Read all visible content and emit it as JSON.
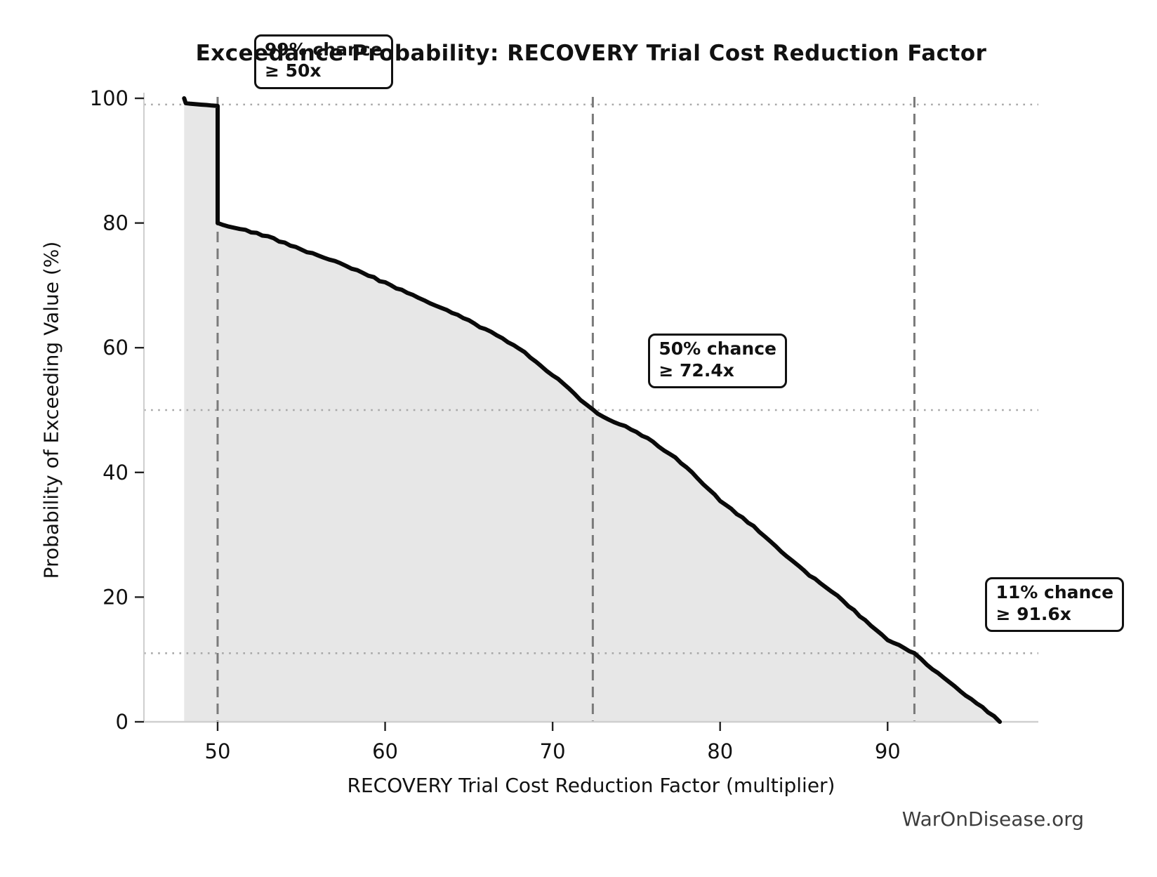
{
  "title": "Exceedance Probability: RECOVERY Trial Cost Reduction Factor",
  "watermark": "WarOnDisease.org",
  "chart_data": {
    "type": "area",
    "title": "Exceedance Probability: RECOVERY Trial Cost Reduction Factor",
    "xlabel": "RECOVERY Trial Cost Reduction Factor (multiplier)",
    "ylabel": "Probability of Exceeding Value (%)",
    "xlim": [
      45.6,
      99.0
    ],
    "ylim": [
      0,
      100
    ],
    "x_ticks": [
      50,
      60,
      70,
      80,
      90
    ],
    "y_ticks": [
      0,
      20,
      40,
      60,
      80,
      100
    ],
    "grid": "reference lines only (no full grid)",
    "legend": "none",
    "series": [
      {
        "name": "exceedance-curve",
        "x": [
          48,
          48.1,
          49,
          50,
          50,
          51,
          52,
          53,
          54,
          55,
          56,
          57,
          58,
          59,
          60,
          61,
          62,
          63,
          64,
          65,
          66,
          67,
          68,
          69,
          70,
          71,
          72,
          72.4,
          73,
          74,
          75,
          76,
          77,
          78,
          79,
          80,
          81,
          82,
          83,
          84,
          85,
          86,
          87,
          88,
          89,
          90,
          91,
          91.6,
          92,
          93,
          94,
          95,
          96,
          96.7
        ],
        "y": [
          100,
          99.2,
          99.0,
          98.8,
          80,
          79.3,
          78.6,
          77.8,
          76.8,
          75.7,
          74.8,
          73.8,
          72.7,
          71.6,
          70.4,
          69.2,
          68.0,
          66.8,
          65.6,
          64.3,
          62.9,
          61.5,
          59.9,
          57.8,
          55.6,
          53.5,
          50.8,
          50,
          48.9,
          47.8,
          46.6,
          44.8,
          43.0,
          40.8,
          38.2,
          35.5,
          33.4,
          31.3,
          28.9,
          26.5,
          24.2,
          22.2,
          20.2,
          17.8,
          15.4,
          13.2,
          11.9,
          11.0,
          10.0,
          7.8,
          5.6,
          3.6,
          1.6,
          0
        ]
      }
    ],
    "reference_vlines": [
      50,
      72.4,
      91.6
    ],
    "reference_hlines": [
      99,
      50,
      11
    ],
    "annotations": [
      {
        "line1": "99% chance",
        "line2": "≥ 50x",
        "x": 50,
        "y": 99
      },
      {
        "line1": "50% chance",
        "line2": "≥ 72.4x",
        "x": 72.4,
        "y": 50
      },
      {
        "line1": "11% chance",
        "line2": "≥ 91.6x",
        "x": 91.6,
        "y": 11
      }
    ],
    "colors": {
      "curve": "#0a0a0a",
      "fill": "#e7e7e7",
      "dashed_line": "#7a7a7a",
      "dotted_line": "#a8a8a8",
      "spine": "#cfcfcf",
      "tick": "#222222",
      "text": "#111111",
      "watermark": "#3d3d3d"
    }
  }
}
